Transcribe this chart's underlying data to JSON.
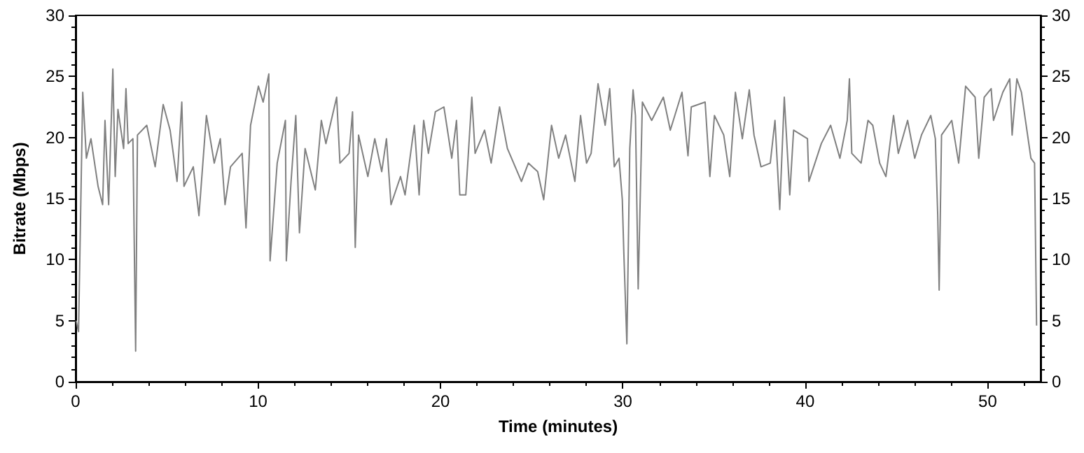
{
  "chart_data": {
    "type": "line",
    "xlabel": "Time (minutes)",
    "ylabel": "Bitrate (Mbps)",
    "xlim": [
      0,
      52.9
    ],
    "xticks": [
      0,
      10,
      20,
      30,
      40,
      50
    ],
    "ylim": [
      0,
      30
    ],
    "yticks": [
      0,
      5,
      10,
      15,
      20,
      25,
      30
    ],
    "y2lim": [
      0,
      30
    ],
    "y2ticks": [
      0,
      5,
      10,
      15,
      20,
      25,
      30
    ],
    "grid": false,
    "marker": "none",
    "line_style": "solid",
    "series": [
      {
        "color": "#808080",
        "x": [
          0.03,
          0.16,
          0.39,
          0.59,
          0.84,
          1.23,
          1.48,
          1.61,
          1.81,
          2.04,
          2.17,
          2.32,
          2.63,
          2.76,
          2.88,
          3.14,
          3.29,
          3.39,
          3.9,
          4.36,
          4.8,
          5.18,
          5.56,
          5.82,
          5.94,
          6.45,
          6.76,
          7.17,
          7.6,
          7.93,
          8.19,
          8.49,
          9.13,
          9.34,
          9.59,
          10.02,
          10.28,
          10.59,
          10.66,
          11.05,
          11.5,
          11.55,
          11.81,
          12.07,
          12.27,
          12.58,
          13.14,
          13.47,
          13.72,
          14.31,
          14.49,
          14.99,
          15.18,
          15.33,
          15.51,
          16.02,
          16.4,
          16.78,
          17.04,
          17.29,
          17.81,
          18.06,
          18.57,
          18.83,
          19.08,
          19.34,
          19.72,
          20.19,
          20.62,
          20.88,
          21.06,
          21.39,
          21.72,
          21.9,
          22.42,
          22.78,
          23.24,
          23.67,
          24.44,
          24.82,
          25.33,
          25.66,
          26.09,
          26.48,
          26.86,
          27.37,
          27.68,
          28.01,
          28.26,
          28.64,
          28.9,
          29.03,
          29.28,
          29.53,
          29.79,
          29.97,
          30.05,
          30.22,
          30.38,
          30.56,
          30.69,
          30.84,
          31.07,
          31.58,
          32.22,
          32.6,
          33.24,
          33.57,
          33.75,
          34.51,
          34.77,
          35.02,
          35.53,
          35.86,
          36.17,
          36.55,
          36.93,
          37.19,
          37.57,
          38.08,
          38.34,
          38.6,
          38.85,
          39.15,
          39.36,
          40.12,
          40.2,
          40.88,
          41.39,
          41.9,
          42.3,
          42.42,
          42.55,
          43.06,
          43.44,
          43.7,
          44.08,
          44.42,
          44.84,
          45.1,
          45.61,
          46.0,
          46.37,
          46.88,
          47.13,
          47.26,
          47.34,
          47.47,
          48.03,
          48.41,
          48.79,
          49.31,
          49.51,
          49.81,
          50.19,
          50.32,
          50.83,
          51.21,
          51.34,
          51.6,
          51.85,
          52.11,
          52.37,
          52.57,
          52.68
        ],
        "values": [
          5.0,
          4.1,
          23.7,
          18.3,
          19.9,
          16.0,
          14.5,
          21.4,
          14.5,
          25.6,
          16.8,
          22.3,
          19.1,
          24.0,
          19.5,
          19.9,
          2.5,
          20.2,
          21.0,
          17.6,
          22.7,
          20.6,
          16.4,
          22.9,
          16.0,
          17.6,
          13.6,
          21.8,
          17.9,
          19.9,
          14.5,
          17.6,
          18.7,
          12.6,
          21.0,
          24.2,
          22.9,
          25.2,
          9.9,
          17.9,
          21.4,
          9.9,
          16.4,
          21.8,
          12.2,
          19.1,
          15.7,
          21.4,
          19.5,
          23.3,
          17.9,
          18.7,
          22.1,
          11.0,
          20.2,
          16.8,
          19.9,
          17.2,
          19.9,
          14.5,
          16.8,
          15.3,
          21.0,
          15.3,
          21.4,
          18.7,
          22.1,
          22.5,
          18.3,
          21.4,
          15.3,
          15.3,
          23.3,
          18.7,
          20.6,
          17.9,
          22.5,
          19.1,
          16.4,
          17.9,
          17.2,
          14.9,
          21.0,
          18.3,
          20.2,
          16.4,
          21.8,
          17.9,
          18.7,
          24.4,
          22.1,
          21.0,
          24.0,
          17.6,
          18.3,
          14.9,
          10.7,
          3.1,
          19.1,
          23.9,
          21.8,
          7.6,
          22.9,
          21.4,
          23.3,
          20.6,
          23.7,
          18.5,
          22.5,
          22.9,
          16.8,
          21.8,
          20.2,
          16.8,
          23.7,
          19.9,
          23.9,
          20.2,
          17.6,
          17.9,
          21.4,
          14.1,
          23.3,
          15.3,
          20.6,
          19.9,
          16.4,
          19.5,
          21.0,
          18.3,
          21.4,
          24.8,
          18.7,
          17.9,
          21.4,
          21.0,
          17.9,
          16.8,
          21.8,
          18.7,
          21.4,
          18.3,
          20.2,
          21.8,
          19.9,
          13.7,
          7.5,
          20.2,
          21.4,
          17.9,
          24.2,
          23.3,
          18.3,
          23.3,
          24.0,
          21.4,
          23.7,
          24.8,
          20.2,
          24.8,
          23.7,
          21.0,
          18.3,
          17.9,
          4.6
        ]
      }
    ]
  }
}
